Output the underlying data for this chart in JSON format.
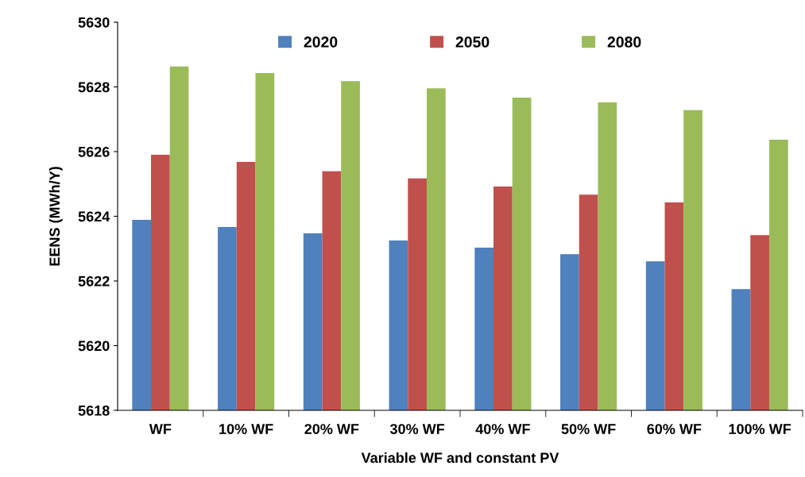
{
  "chart_data": {
    "type": "bar",
    "xlabel": "Variable WF and constant PV",
    "ylabel": "EENS (MWh/Y)",
    "categories": [
      "WF",
      "10% WF",
      "20% WF",
      "30% WF",
      "40% WF",
      "50% WF",
      "60% WF",
      "100% WF"
    ],
    "series": [
      {
        "name": "2020",
        "color": "#4f81bd",
        "values": [
          5623.89,
          5623.67,
          5623.47,
          5623.25,
          5623.03,
          5622.83,
          5622.61,
          5621.75
        ]
      },
      {
        "name": "2050",
        "color": "#c0504d",
        "values": [
          5625.9,
          5625.68,
          5625.39,
          5625.17,
          5624.92,
          5624.67,
          5624.43,
          5623.42
        ]
      },
      {
        "name": "2080",
        "color": "#9bbb59",
        "values": [
          5628.63,
          5628.43,
          5628.18,
          5627.96,
          5627.67,
          5627.52,
          5627.28,
          5626.37
        ]
      }
    ],
    "ylim": [
      5618,
      5630
    ],
    "yticks": [
      5618,
      5620,
      5622,
      5624,
      5626,
      5628,
      5630
    ],
    "grid": false,
    "legend": "top"
  }
}
